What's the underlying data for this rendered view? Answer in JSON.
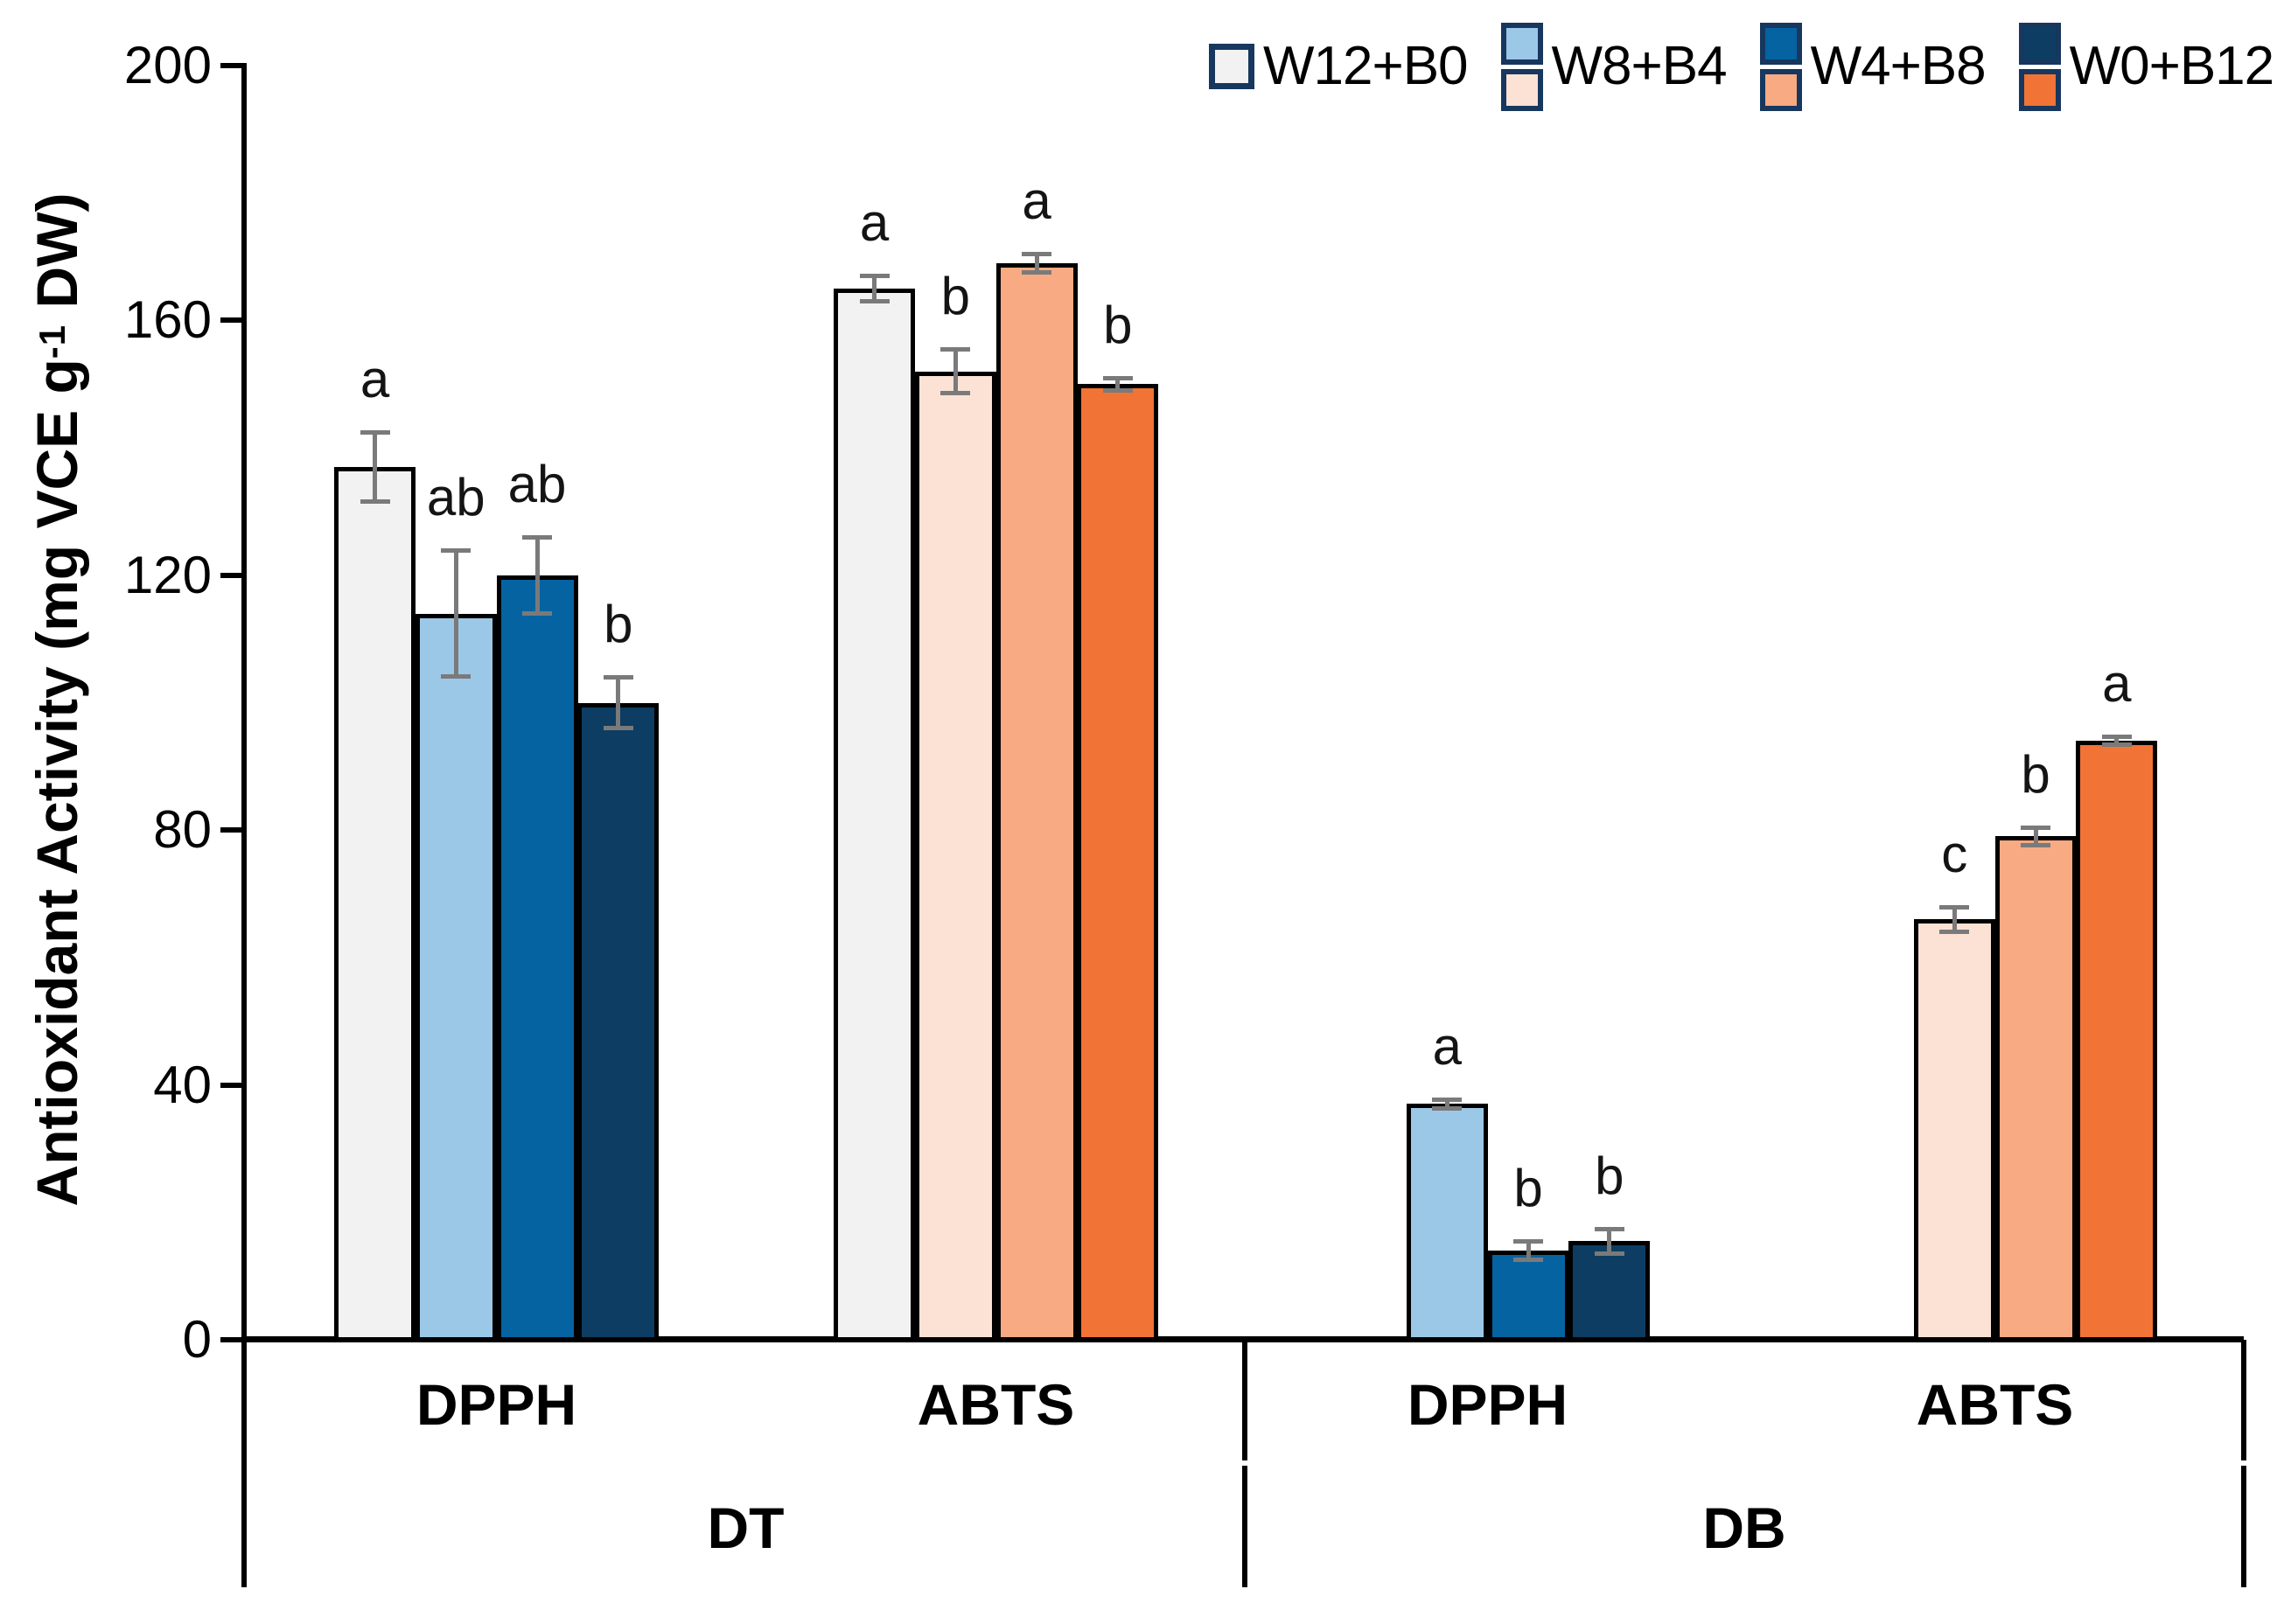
{
  "colors": {
    "background": "#ffffff",
    "axis": "#000000",
    "error_bar": "#7a7a7a",
    "legend_swatch_border": "#17375E",
    "w12b0": "#F2F2F2",
    "w8b4_blue": "#9CC8E8",
    "w4b8_blue": "#0563A1",
    "w0b12_blue": "#0D3D62",
    "w8b4_orange": "#FBE2D5",
    "w4b8_orange": "#F8AA82",
    "w0b12_orange": "#F17335"
  },
  "ylabel_parts": {
    "prefix": "Antioxidant Activity (mg VCE g",
    "sup": "-1",
    "suffix": " DW)"
  },
  "legend": {
    "items": [
      {
        "label": "W12+B0",
        "swatches": [
          "#F2F2F2"
        ]
      },
      {
        "label": "W8+B4",
        "swatches": [
          "#9CC8E8",
          "#FBE2D5"
        ]
      },
      {
        "label": "W4+B8",
        "swatches": [
          "#0563A1",
          "#F8AA82"
        ]
      },
      {
        "label": "W0+B12",
        "swatches": [
          "#0D3D62",
          "#F17335"
        ]
      }
    ]
  },
  "chart_data": {
    "type": "bar",
    "title": "",
    "xlabel": "",
    "ylabel": "Antioxidant Activity (mg VCE g-1 DW)",
    "ylim": [
      0,
      200
    ],
    "yticks": [
      0,
      40,
      80,
      120,
      160,
      200
    ],
    "grid": false,
    "legend_position": "top-right",
    "series_names": [
      "W12+B0",
      "W8+B4",
      "W4+B8",
      "W0+B12"
    ],
    "sections": [
      {
        "label": "DT"
      },
      {
        "label": "DB"
      }
    ],
    "groups": [
      {
        "section": "DT",
        "assay": "DPPH",
        "bars": [
          {
            "series": "W12+B0",
            "value": 137,
            "err": 5.5,
            "letter": "a",
            "color": "#F2F2F2"
          },
          {
            "series": "W8+B4",
            "value": 114,
            "err": 10,
            "letter": "ab",
            "color": "#9CC8E8"
          },
          {
            "series": "W4+B8",
            "value": 120,
            "err": 6,
            "letter": "ab",
            "color": "#0563A1"
          },
          {
            "series": "W0+B12",
            "value": 100,
            "err": 4,
            "letter": "b",
            "color": "#0D3D62"
          }
        ]
      },
      {
        "section": "DT",
        "assay": "ABTS",
        "bars": [
          {
            "series": "W12+B0",
            "value": 165,
            "err": 2,
            "letter": "a",
            "color": "#F2F2F2"
          },
          {
            "series": "W8+B4",
            "value": 152,
            "err": 3.5,
            "letter": "b",
            "color": "#FBE2D5"
          },
          {
            "series": "W4+B8",
            "value": 169,
            "err": 1.5,
            "letter": "a",
            "color": "#F8AA82"
          },
          {
            "series": "W0+B12",
            "value": 150,
            "err": 1,
            "letter": "b",
            "color": "#F17335"
          }
        ]
      },
      {
        "section": "DB",
        "assay": "DPPH",
        "bars": [
          {
            "series": "W12+B0",
            "value": null,
            "err": null,
            "letter": null,
            "color": "#F2F2F2"
          },
          {
            "series": "W8+B4",
            "value": 37,
            "err": 0.7,
            "letter": "a",
            "color": "#9CC8E8"
          },
          {
            "series": "W4+B8",
            "value": 14,
            "err": 1.5,
            "letter": "b",
            "color": "#0563A1"
          },
          {
            "series": "W0+B12",
            "value": 15.5,
            "err": 2,
            "letter": "b",
            "color": "#0D3D62"
          }
        ]
      },
      {
        "section": "DB",
        "assay": "ABTS",
        "bars": [
          {
            "series": "W12+B0",
            "value": null,
            "err": null,
            "letter": null,
            "color": "#F2F2F2"
          },
          {
            "series": "W8+B4",
            "value": 66,
            "err": 2,
            "letter": "c",
            "color": "#FBE2D5"
          },
          {
            "series": "W4+B8",
            "value": 79,
            "err": 1.5,
            "letter": "b",
            "color": "#F8AA82"
          },
          {
            "series": "W0+B12",
            "value": 94,
            "err": 0.7,
            "letter": "a",
            "color": "#F17335"
          }
        ]
      }
    ]
  }
}
